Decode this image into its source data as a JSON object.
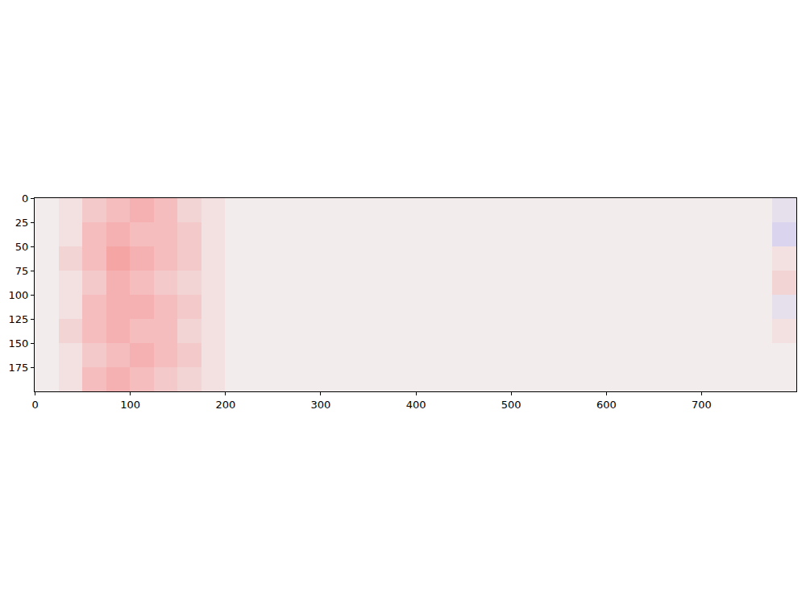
{
  "chart_data": {
    "type": "heatmap",
    "x": [
      12,
      37,
      62,
      87,
      112,
      137,
      162,
      187,
      212,
      237,
      262,
      287,
      312,
      337,
      362,
      387,
      412,
      437,
      462,
      487,
      512,
      537,
      562,
      587,
      612,
      637,
      662,
      687,
      712,
      737,
      762,
      787
    ],
    "y": [
      12,
      37,
      62,
      87,
      112,
      137,
      162,
      187
    ],
    "z": [
      [
        0,
        0.05,
        0.15,
        0.2,
        0.25,
        0.2,
        0.1,
        0.05,
        0,
        0,
        0,
        0,
        0,
        0,
        0,
        0,
        0,
        0,
        0,
        0,
        0,
        0,
        0,
        0,
        0,
        0,
        0,
        0,
        0,
        0,
        0,
        -0.05
      ],
      [
        0,
        0.05,
        0.2,
        0.25,
        0.2,
        0.2,
        0.15,
        0.05,
        0,
        0,
        0,
        0,
        0,
        0,
        0,
        0,
        0,
        0,
        0,
        0,
        0,
        0,
        0,
        0,
        0,
        0,
        0,
        0,
        0,
        0,
        0,
        -0.1
      ],
      [
        0,
        0.1,
        0.2,
        0.3,
        0.25,
        0.2,
        0.15,
        0.05,
        0,
        0,
        0,
        0,
        0,
        0,
        0,
        0,
        0,
        0,
        0,
        0,
        0,
        0,
        0,
        0,
        0,
        0,
        0,
        0,
        0,
        0,
        0,
        0.05
      ],
      [
        0,
        0.05,
        0.15,
        0.25,
        0.2,
        0.15,
        0.1,
        0.05,
        0,
        0,
        0,
        0,
        0,
        0,
        0,
        0,
        0,
        0,
        0,
        0,
        0,
        0,
        0,
        0,
        0,
        0,
        0,
        0,
        0,
        0,
        0,
        0.1
      ],
      [
        0,
        0.05,
        0.2,
        0.25,
        0.25,
        0.2,
        0.15,
        0.05,
        0,
        0,
        0,
        0,
        0,
        0,
        0,
        0,
        0,
        0,
        0,
        0,
        0,
        0,
        0,
        0,
        0,
        0,
        0,
        0,
        0,
        0,
        0,
        -0.05
      ],
      [
        0,
        0.1,
        0.2,
        0.25,
        0.2,
        0.2,
        0.1,
        0.05,
        0,
        0,
        0,
        0,
        0,
        0,
        0,
        0,
        0,
        0,
        0,
        0,
        0,
        0,
        0,
        0,
        0,
        0,
        0,
        0,
        0,
        0,
        0,
        0.05
      ],
      [
        0,
        0.05,
        0.15,
        0.2,
        0.25,
        0.2,
        0.15,
        0.05,
        0,
        0,
        0,
        0,
        0,
        0,
        0,
        0,
        0,
        0,
        0,
        0,
        0,
        0,
        0,
        0,
        0,
        0,
        0,
        0,
        0,
        0,
        0,
        0
      ],
      [
        0,
        0.05,
        0.2,
        0.25,
        0.2,
        0.15,
        0.1,
        0.05,
        0,
        0,
        0,
        0,
        0,
        0,
        0,
        0,
        0,
        0,
        0,
        0,
        0,
        0,
        0,
        0,
        0,
        0,
        0,
        0,
        0,
        0,
        0,
        0
      ]
    ],
    "zlim": [
      -1,
      1
    ],
    "xlim": [
      -0.5,
      799.5
    ],
    "ylim": [
      199.5,
      -0.5
    ],
    "xticks": [
      0,
      100,
      200,
      300,
      400,
      500,
      600,
      700
    ],
    "yticks": [
      0,
      25,
      50,
      75,
      100,
      125,
      150,
      175
    ],
    "grid": false
  }
}
